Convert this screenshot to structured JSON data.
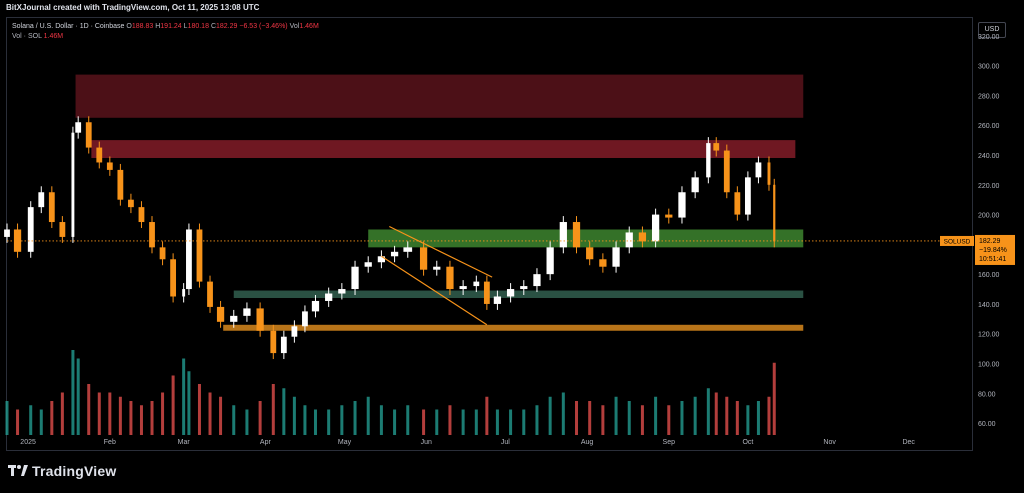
{
  "header": {
    "attribution": "BitXJournal created with TradingView.com, Oct 11, 2025 13:08 UTC"
  },
  "legend": {
    "symbol": "Solana / U.S. Dollar · 1D · Coinbase",
    "open_label": "O",
    "open": "188.83",
    "high_label": "H",
    "high": "191.24",
    "low_label": "L",
    "low": "180.18",
    "close_label": "C",
    "close": "182.29",
    "change": "−6.53 (−3.46%)",
    "vol_label": "Vol",
    "vol": "1.46M",
    "vol_line_label": "Vol · SOL",
    "vol_line_value": "1.46M"
  },
  "currency": "USD",
  "price_tag": {
    "ticker": "SOLUSD",
    "price": "182.29",
    "change_pct": "−19.84%",
    "countdown": "10:51:41"
  },
  "footer": {
    "logo_text": "TradingView"
  },
  "colors": {
    "up": "#26a69a",
    "down": "#ef5350",
    "candle_up": "#ffffff",
    "candle_down": "#f7931a",
    "resistance_zone": "#8b1e2a",
    "support_zone": "#3a7d2c",
    "support_zone_2": "#2f5a4a",
    "support_line": "#c27a1a",
    "channel": "#f7931a"
  },
  "chart_data": {
    "type": "candlestick",
    "title": "Solana / U.S. Dollar · 1D · Coinbase",
    "xlabel": "",
    "ylabel": "",
    "y_unit": "USD",
    "ylim": [
      52,
      332
    ],
    "y_ticks": [
      60,
      80,
      100,
      120,
      140,
      160,
      180,
      200,
      220,
      240,
      260,
      280,
      300,
      320
    ],
    "y_tick_labels": [
      "60.00",
      "80.00",
      "100.00",
      "120.00",
      "140.00",
      "160.00",
      "180.00",
      "200.00",
      "220.00",
      "240.00",
      "260.00",
      "280.00",
      "300.00",
      "320.00"
    ],
    "x_tick_labels": [
      "2025",
      "Feb",
      "Mar",
      "Apr",
      "May",
      "Jun",
      "Jul",
      "Aug",
      "Sep",
      "Oct",
      "Nov",
      "Dec"
    ],
    "x_tick_dates": [
      "2025-01-01",
      "2025-02-01",
      "2025-03-01",
      "2025-04-01",
      "2025-05-01",
      "2025-06-01",
      "2025-07-01",
      "2025-08-01",
      "2025-09-01",
      "2025-10-01",
      "2025-11-01",
      "2025-12-01"
    ],
    "x_range": [
      "2024-12-24",
      "2025-12-25"
    ],
    "last_price": 182.29,
    "close_series": {
      "dates": [
        "2024-12-24",
        "2024-12-28",
        "2025-01-02",
        "2025-01-06",
        "2025-01-10",
        "2025-01-14",
        "2025-01-18",
        "2025-01-20",
        "2025-01-24",
        "2025-01-28",
        "2025-02-01",
        "2025-02-05",
        "2025-02-09",
        "2025-02-13",
        "2025-02-17",
        "2025-02-21",
        "2025-02-25",
        "2025-03-01",
        "2025-03-03",
        "2025-03-07",
        "2025-03-11",
        "2025-03-15",
        "2025-03-20",
        "2025-03-25",
        "2025-03-30",
        "2025-04-04",
        "2025-04-08",
        "2025-04-12",
        "2025-04-16",
        "2025-04-20",
        "2025-04-25",
        "2025-04-30",
        "2025-05-05",
        "2025-05-10",
        "2025-05-15",
        "2025-05-20",
        "2025-05-25",
        "2025-05-31",
        "2025-06-05",
        "2025-06-10",
        "2025-06-15",
        "2025-06-20",
        "2025-06-24",
        "2025-06-28",
        "2025-07-03",
        "2025-07-08",
        "2025-07-13",
        "2025-07-18",
        "2025-07-23",
        "2025-07-28",
        "2025-08-02",
        "2025-08-07",
        "2025-08-12",
        "2025-08-17",
        "2025-08-22",
        "2025-08-27",
        "2025-09-01",
        "2025-09-06",
        "2025-09-11",
        "2025-09-16",
        "2025-09-19",
        "2025-09-23",
        "2025-09-27",
        "2025-10-01",
        "2025-10-05",
        "2025-10-09",
        "2025-10-11"
      ],
      "close": [
        190,
        175,
        205,
        215,
        195,
        185,
        255,
        262,
        245,
        235,
        230,
        210,
        205,
        195,
        178,
        170,
        145,
        150,
        190,
        155,
        138,
        128,
        132,
        137,
        122,
        107,
        118,
        125,
        135,
        142,
        147,
        150,
        165,
        168,
        172,
        175,
        178,
        163,
        165,
        150,
        152,
        155,
        140,
        145,
        150,
        152,
        160,
        178,
        195,
        178,
        170,
        165,
        178,
        188,
        182,
        200,
        198,
        215,
        225,
        248,
        243,
        215,
        200,
        225,
        235,
        220,
        182
      ]
    },
    "volume_relative": [
      0.4,
      0.3,
      0.35,
      0.3,
      0.4,
      0.5,
      1.0,
      0.9,
      0.6,
      0.5,
      0.5,
      0.45,
      0.4,
      0.35,
      0.4,
      0.5,
      0.7,
      0.9,
      0.75,
      0.6,
      0.5,
      0.45,
      0.35,
      0.3,
      0.4,
      0.6,
      0.55,
      0.45,
      0.35,
      0.3,
      0.3,
      0.35,
      0.4,
      0.45,
      0.35,
      0.3,
      0.35,
      0.3,
      0.3,
      0.35,
      0.3,
      0.3,
      0.45,
      0.3,
      0.3,
      0.3,
      0.35,
      0.45,
      0.5,
      0.4,
      0.4,
      0.35,
      0.45,
      0.4,
      0.35,
      0.45,
      0.35,
      0.4,
      0.45,
      0.55,
      0.5,
      0.45,
      0.4,
      0.35,
      0.4,
      0.45,
      0.85
    ],
    "annotations": [
      {
        "type": "zone",
        "label": "resistance-upper",
        "from": "2025-01-19",
        "to": "2025-10-22",
        "low": 265,
        "high": 294
      },
      {
        "type": "zone",
        "label": "resistance-lower",
        "from": "2025-01-25",
        "to": "2025-10-19",
        "low": 238,
        "high": 250
      },
      {
        "type": "zone",
        "label": "support-green",
        "from": "2025-05-10",
        "to": "2025-10-22",
        "low": 178,
        "high": 190
      },
      {
        "type": "zone",
        "label": "support-teal",
        "from": "2025-03-20",
        "to": "2025-10-22",
        "low": 144,
        "high": 149
      },
      {
        "type": "zone",
        "label": "support-orange",
        "from": "2025-03-16",
        "to": "2025-10-22",
        "low": 122,
        "high": 126
      },
      {
        "type": "channel",
        "label": "descending-channel",
        "upper": [
          [
            "2025-05-18",
            192
          ],
          [
            "2025-06-26",
            158
          ]
        ],
        "lower": [
          [
            "2025-05-15",
            172
          ],
          [
            "2025-06-24",
            126
          ]
        ]
      }
    ]
  }
}
